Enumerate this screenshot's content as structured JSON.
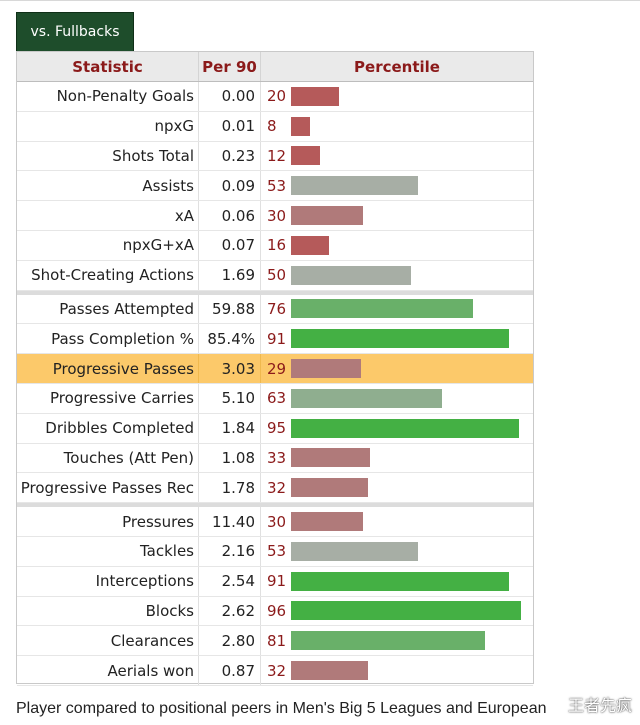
{
  "tab": {
    "label": "vs. Fullbacks"
  },
  "header": {
    "statistic": "Statistic",
    "per90": "Per 90",
    "percentile": "Percentile"
  },
  "colors": {
    "red": "#b55a5a",
    "rose": "#b07a7a",
    "gray": "#a7aea5",
    "sage": "#8fae8f",
    "green": "#44b044",
    "midgreen": "#69b069",
    "highlight": "#fcc96a"
  },
  "groups": [
    [
      {
        "stat": "Non-Penalty Goals",
        "per90": "0.00",
        "pct": 20,
        "color": "red"
      },
      {
        "stat": "npxG",
        "per90": "0.01",
        "pct": 8,
        "color": "red"
      },
      {
        "stat": "Shots Total",
        "per90": "0.23",
        "pct": 12,
        "color": "red"
      },
      {
        "stat": "Assists",
        "per90": "0.09",
        "pct": 53,
        "color": "gray"
      },
      {
        "stat": "xA",
        "per90": "0.06",
        "pct": 30,
        "color": "rose"
      },
      {
        "stat": "npxG+xA",
        "per90": "0.07",
        "pct": 16,
        "color": "red"
      },
      {
        "stat": "Shot-Creating Actions",
        "per90": "1.69",
        "pct": 50,
        "color": "gray"
      }
    ],
    [
      {
        "stat": "Passes Attempted",
        "per90": "59.88",
        "pct": 76,
        "color": "midgreen"
      },
      {
        "stat": "Pass Completion %",
        "per90": "85.4%",
        "pct": 91,
        "color": "green"
      },
      {
        "stat": "Progressive Passes",
        "per90": "3.03",
        "pct": 29,
        "color": "rose",
        "highlight": true
      },
      {
        "stat": "Progressive Carries",
        "per90": "5.10",
        "pct": 63,
        "color": "sage"
      },
      {
        "stat": "Dribbles Completed",
        "per90": "1.84",
        "pct": 95,
        "color": "green"
      },
      {
        "stat": "Touches (Att Pen)",
        "per90": "1.08",
        "pct": 33,
        "color": "rose"
      },
      {
        "stat": "Progressive Passes Rec",
        "per90": "1.78",
        "pct": 32,
        "color": "rose"
      }
    ],
    [
      {
        "stat": "Pressures",
        "per90": "11.40",
        "pct": 30,
        "color": "rose"
      },
      {
        "stat": "Tackles",
        "per90": "2.16",
        "pct": 53,
        "color": "gray"
      },
      {
        "stat": "Interceptions",
        "per90": "2.54",
        "pct": 91,
        "color": "green"
      },
      {
        "stat": "Blocks",
        "per90": "2.62",
        "pct": 96,
        "color": "green"
      },
      {
        "stat": "Clearances",
        "per90": "2.80",
        "pct": 81,
        "color": "midgreen"
      },
      {
        "stat": "Aerials won",
        "per90": "0.87",
        "pct": 32,
        "color": "rose"
      }
    ]
  ],
  "caption": "Player compared to positional peers in Men's Big 5 Leagues and European",
  "watermark": "王者先疯"
}
